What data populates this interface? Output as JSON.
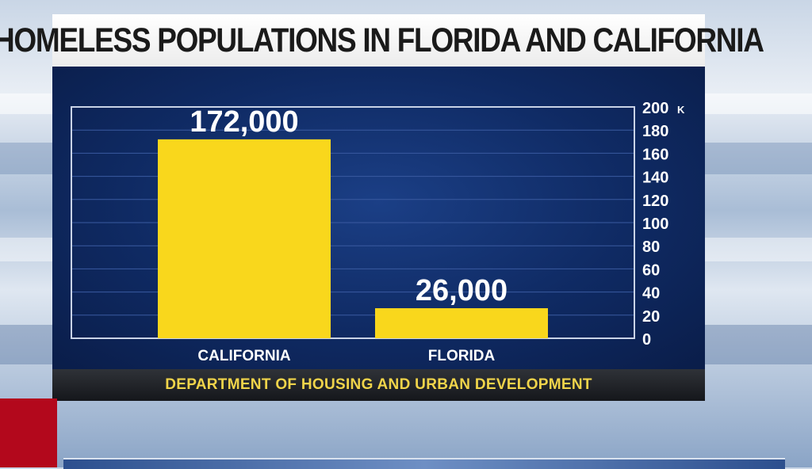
{
  "chart_data": {
    "type": "bar",
    "title": "HOMELESS POPULATIONS IN FLORIDA AND CALIFORNIA",
    "categories": [
      "CALIFORNIA",
      "FLORIDA"
    ],
    "values": [
      172000,
      26000
    ],
    "value_labels": [
      "172,000",
      "26,000"
    ],
    "y_ticks": [
      0,
      20,
      40,
      60,
      80,
      100,
      120,
      140,
      160,
      180,
      200
    ],
    "y_tick_labels": [
      "0",
      "20",
      "40",
      "60",
      "80",
      "100",
      "120",
      "140",
      "160",
      "180",
      "200"
    ],
    "y_unit_suffix": "K",
    "ylim": [
      0,
      200000
    ],
    "xlabel": "",
    "ylabel": "",
    "source": "DEPARTMENT OF HOUSING AND URBAN DEVELOPMENT",
    "colors": {
      "bar": "#f9d71c",
      "panel": "#0f2a63",
      "grid": "#3a5aa0",
      "frame": "#c9d3e6",
      "text": "#ffffff",
      "source_text": "#f0d44a"
    }
  }
}
